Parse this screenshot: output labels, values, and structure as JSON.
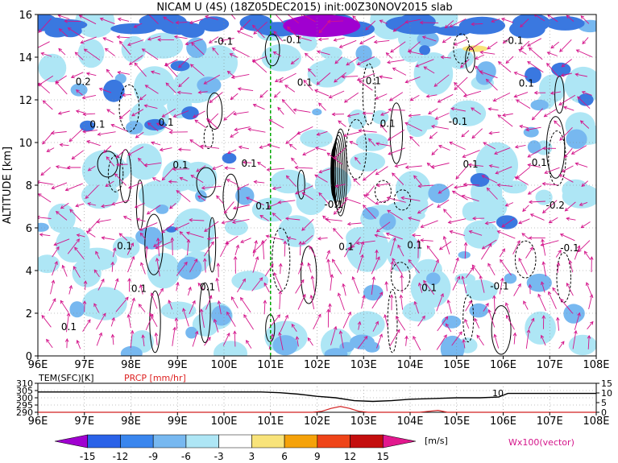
{
  "title": "NICAM U (4S) (18Z05DEC2015) init:00Z30NOV2015 slab",
  "colors": {
    "shade_light": "#aee6f5",
    "shade_mid": "#77b8f0",
    "shade_dark": "#3a78e0",
    "shade_purple": "#a000d0",
    "arrow": "#d4148a",
    "green_line": "#00aa00",
    "temp_line": "#000000",
    "prcp_line": "#d22222"
  },
  "chart_data": [
    {
      "type": "heatmap",
      "title": "NICAM U (4S) (18Z05DEC2015) init:00Z30NOV2015 slab",
      "xlabel": "",
      "ylabel": "ALTITUDE [km]",
      "x_ticks": [
        "96E",
        "97E",
        "98E",
        "99E",
        "100E",
        "101E",
        "102E",
        "103E",
        "104E",
        "105E",
        "106E",
        "107E",
        "108E"
      ],
      "y_ticks": [
        "0",
        "2",
        "4",
        "6",
        "8",
        "10",
        "12",
        "14",
        "16"
      ],
      "xlim": [
        96,
        108
      ],
      "ylim": [
        0,
        16
      ],
      "marker_longitude": 101,
      "contour_labels": [
        "0.1",
        "0.1",
        "-0.1",
        "-0.1",
        "0.1",
        "0.1",
        "-0.1",
        "-0.1",
        "0.1",
        "0.1",
        "0.1",
        "0.1",
        "0.2",
        "-0.2",
        "-0.1",
        "0.1",
        "0.1",
        "0.1",
        "0.1",
        "0.1",
        "0.1",
        "-0.1",
        "0.1",
        "0.1",
        "0.1",
        "-0.1",
        "0.1"
      ],
      "legend": "Wx100(vector)"
    },
    {
      "type": "line",
      "title": "",
      "x_ticks": [
        "96E",
        "97E",
        "98E",
        "99E",
        "100E",
        "101E",
        "102E",
        "103E",
        "104E",
        "105E",
        "106E",
        "107E",
        "108E"
      ],
      "series": [
        {
          "name": "TEM(SFC)[K]",
          "axis": "left",
          "x": [
            96,
            97,
            98,
            99,
            100,
            100.8,
            101.2,
            101.6,
            102.0,
            102.4,
            102.8,
            103.2,
            103.6,
            104.0,
            104.5,
            105.0,
            105.5,
            105.9,
            106.1,
            107,
            108
          ],
          "values": [
            304,
            304,
            304,
            304,
            304,
            304,
            303.5,
            302.5,
            301,
            300,
            298,
            297.5,
            298,
            299,
            299.5,
            300,
            300,
            300.5,
            303,
            303,
            303
          ]
        },
        {
          "name": "PRCP [mm/hr]",
          "axis": "right",
          "x": [
            96,
            101.9,
            102.1,
            102.3,
            102.5,
            102.7,
            102.9,
            103.1,
            104.2,
            104.4,
            104.6,
            104.8,
            108
          ],
          "values": [
            0,
            0,
            0.5,
            2,
            3,
            2,
            0.5,
            0,
            0,
            0.5,
            1,
            0,
            0
          ]
        }
      ],
      "left_ticks": [
        "310",
        "305",
        "300",
        "295",
        "290"
      ],
      "right_ticks": [
        "15",
        "10",
        "5",
        "0"
      ],
      "ylim_left": [
        290,
        310
      ],
      "ylim_right": [
        0,
        15
      ],
      "annotation": "10"
    }
  ],
  "colorbar": {
    "ticks": [
      "-15",
      "-12",
      "-9",
      "-6",
      "-3",
      "3",
      "6",
      "9",
      "12",
      "15"
    ],
    "unit": "[m/s]",
    "colors": [
      "#a000d0",
      "#2a62e8",
      "#3a86ee",
      "#77b8f0",
      "#aee6f5",
      "#ffffff",
      "#f8e37a",
      "#f5a20a",
      "#ef4418",
      "#c40e0e",
      "#e2188e"
    ]
  }
}
